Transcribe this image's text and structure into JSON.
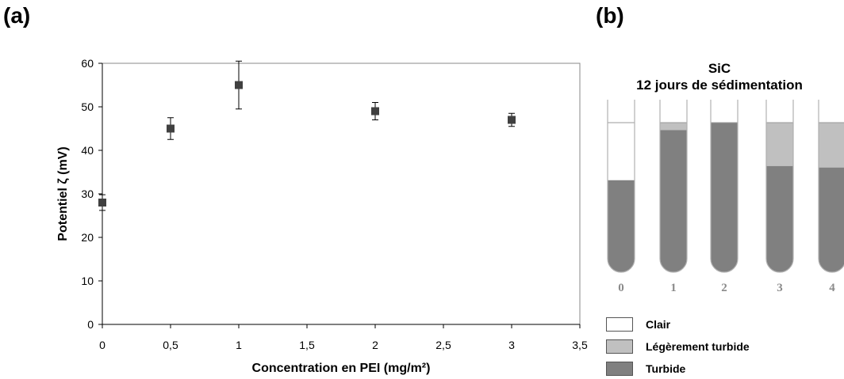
{
  "panel_a": {
    "label": "(a)",
    "chart_data": {
      "type": "scatter",
      "xlabel": "Concentration en PEI (mg/m²)",
      "ylabel": "Potentiel ζ (mV)",
      "xlim": [
        0,
        3.5
      ],
      "ylim": [
        0,
        60
      ],
      "x_ticks": [
        "0",
        "0,5",
        "1",
        "1,5",
        "2",
        "2,5",
        "3",
        "3,5"
      ],
      "y_ticks": [
        "0",
        "10",
        "20",
        "30",
        "40",
        "50",
        "60"
      ],
      "grid": false,
      "points": [
        {
          "x": 0,
          "y": 28,
          "err": 1.8
        },
        {
          "x": 0.5,
          "y": 45,
          "err": 2.5
        },
        {
          "x": 1,
          "y": 55,
          "err": 5.5
        },
        {
          "x": 2,
          "y": 49,
          "err": 2.0
        },
        {
          "x": 3,
          "y": 47,
          "err": 1.5
        }
      ],
      "marker_color": "#404040"
    }
  },
  "panel_b": {
    "label": "(b)",
    "title_line1": "SiC",
    "title_line2": "12 jours de sédimentation",
    "tubes": [
      {
        "label": "0",
        "turbide": 0.615,
        "legerement_turbide": 0.0,
        "clair": 0.385
      },
      {
        "label": "1",
        "turbide": 0.95,
        "legerement_turbide": 0.05,
        "clair": 0.0
      },
      {
        "label": "2",
        "turbide": 1.0,
        "legerement_turbide": 0.0,
        "clair": 0.0
      },
      {
        "label": "3",
        "turbide": 0.71,
        "legerement_turbide": 0.29,
        "clair": 0.0
      },
      {
        "label": "4",
        "turbide": 0.7,
        "legerement_turbide": 0.3,
        "clair": 0.0
      }
    ],
    "legend": [
      {
        "label": "Clair",
        "color": "#ffffff"
      },
      {
        "label": "Légèrement turbide",
        "color": "#c0c0c0"
      },
      {
        "label": "Turbide",
        "color": "#808080"
      }
    ],
    "colors": {
      "clair": "#ffffff",
      "legerement_turbide": "#c0c0c0",
      "turbide": "#808080",
      "tube_label": "#8a8a8a"
    }
  }
}
